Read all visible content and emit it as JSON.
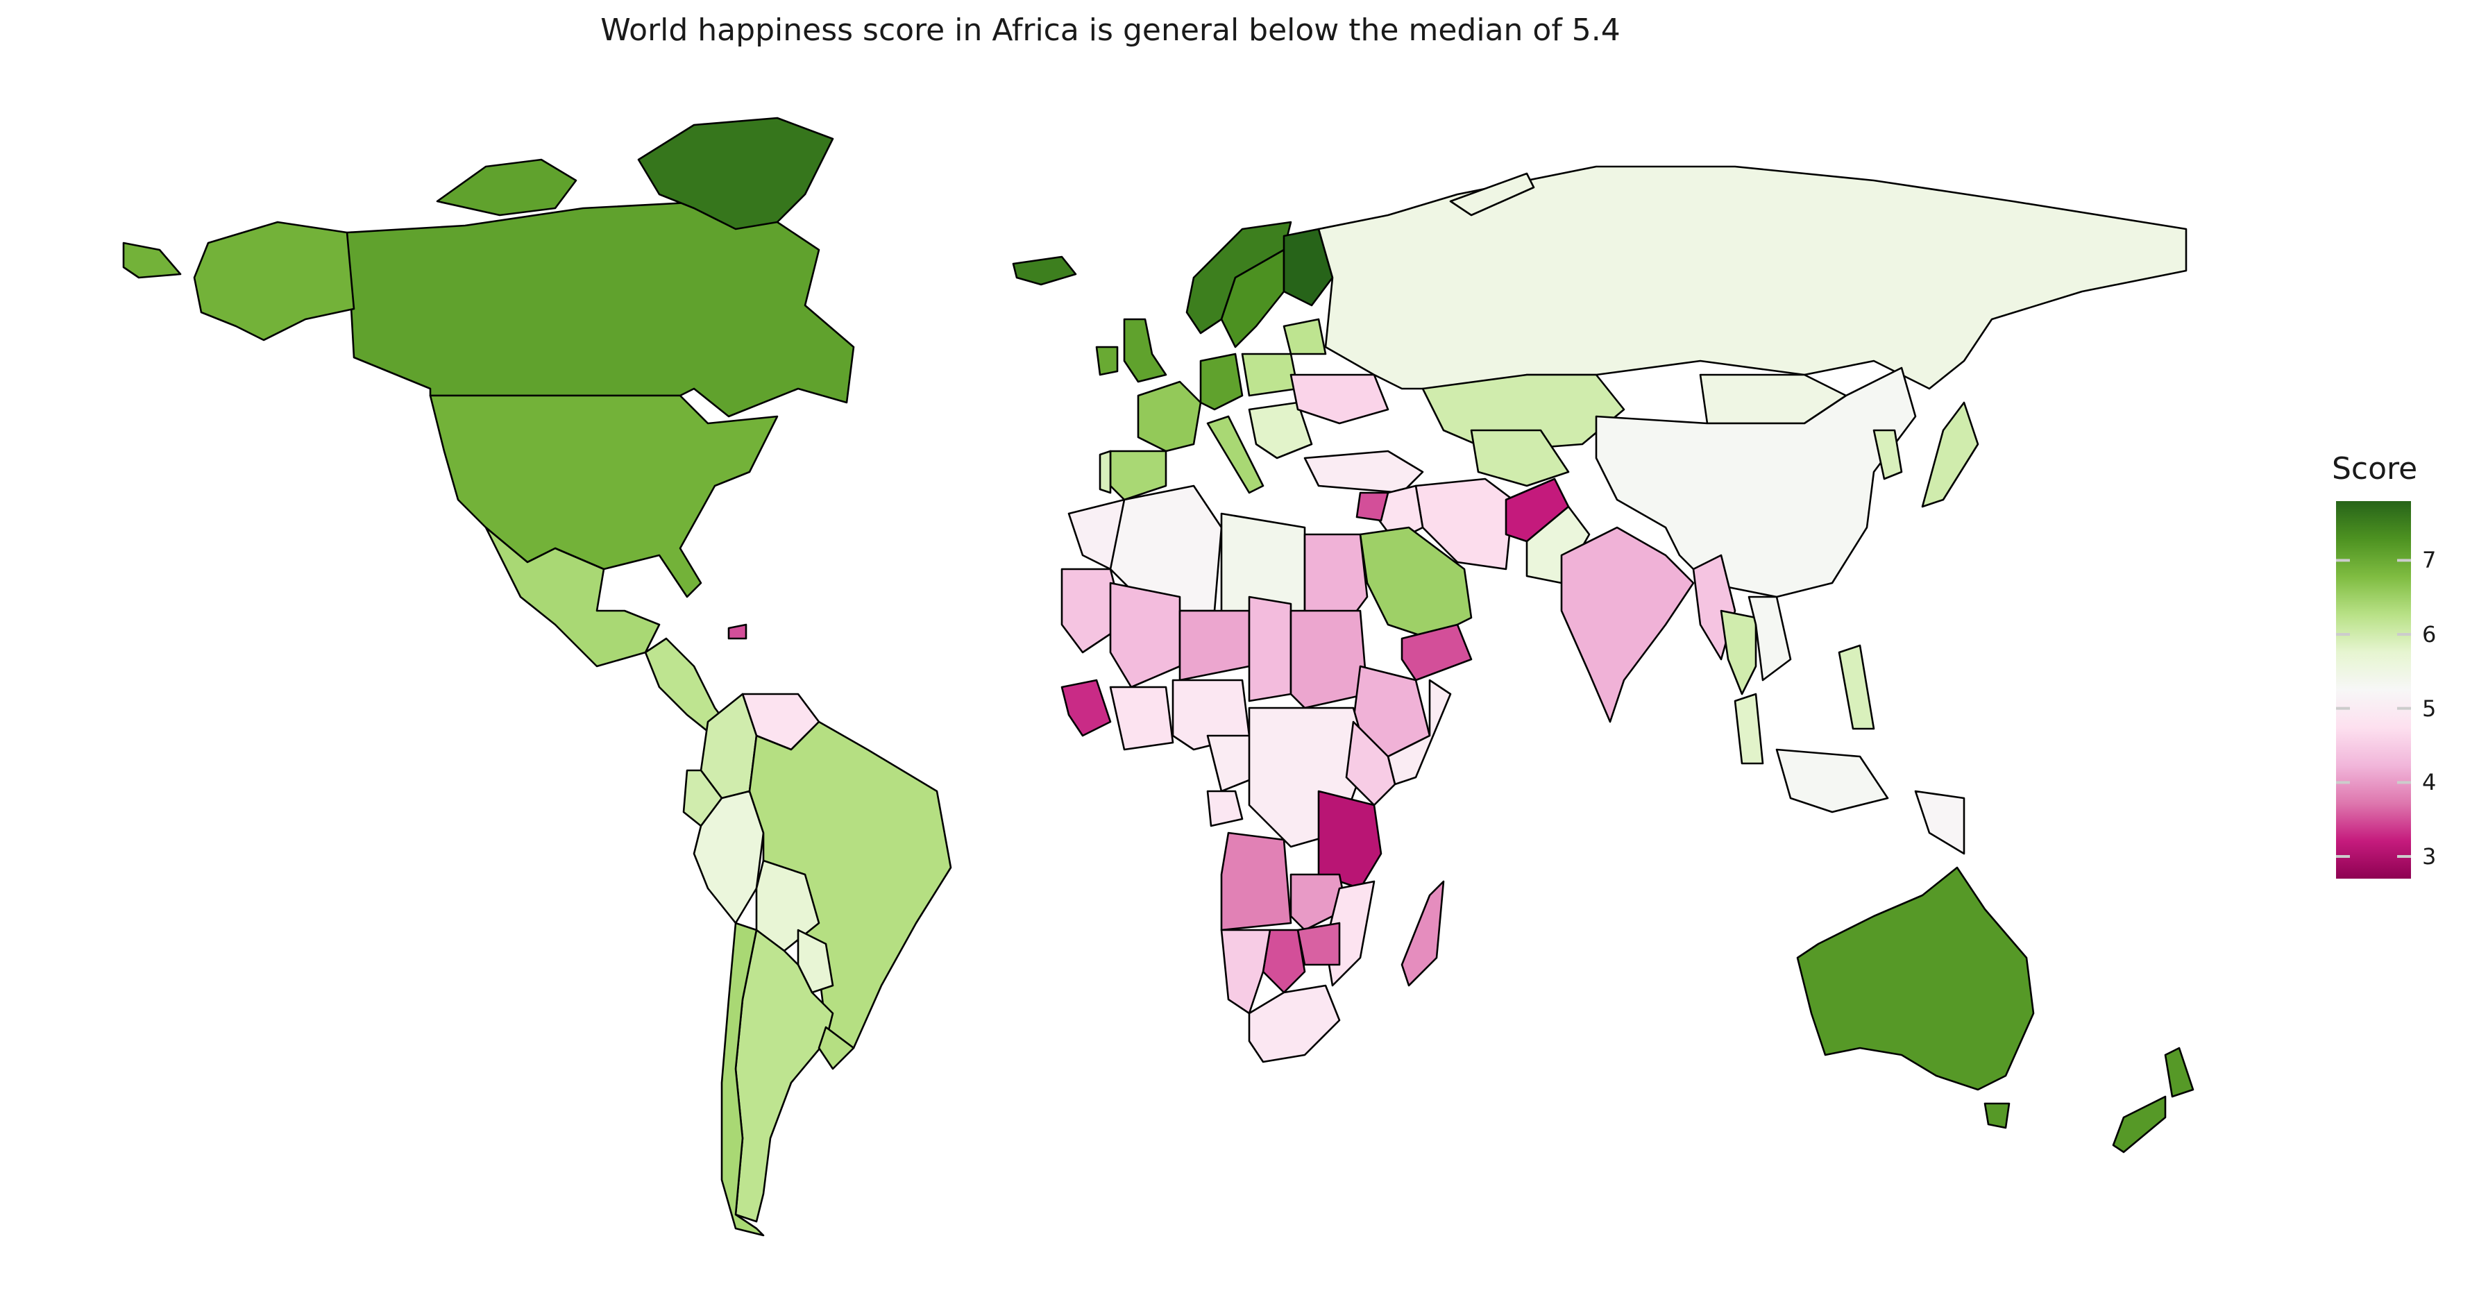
{
  "title": "World happiness score in Africa is general below the median of 5.4",
  "legend": {
    "title": "Score",
    "ticks": [
      "3",
      "4",
      "5",
      "6",
      "7"
    ],
    "tick_values": [
      3,
      4,
      5,
      6,
      7
    ],
    "min": 2.7,
    "max": 7.8,
    "stops": [
      "#8e0152",
      "#c51b7d",
      "#de77ae",
      "#f1b6da",
      "#fde0ef",
      "#f7f7f7",
      "#e6f5d0",
      "#b8e186",
      "#7fbc41",
      "#4d9221",
      "#276419"
    ]
  },
  "chart_data": {
    "type": "choropleth",
    "title": "World happiness score in Africa is general below the median of 5.4",
    "legend_title": "Score",
    "scale_range": [
      2.7,
      7.8
    ],
    "colormap": "PiYG",
    "median": 5.4,
    "regions": [
      {
        "name": "Canada",
        "value": 7.1
      },
      {
        "name": "Greenland",
        "value": 7.6
      },
      {
        "name": "United States",
        "value": 6.9
      },
      {
        "name": "Alaska",
        "value": 6.9
      },
      {
        "name": "Mexico",
        "value": 6.4
      },
      {
        "name": "Central America",
        "value": 6.2
      },
      {
        "name": "Cuba/Haiti",
        "value": 3.5
      },
      {
        "name": "Venezuela",
        "value": 4.8
      },
      {
        "name": "Colombia",
        "value": 6.0
      },
      {
        "name": "Ecuador",
        "value": 6.0
      },
      {
        "name": "Peru",
        "value": 5.6
      },
      {
        "name": "Brazil",
        "value": 6.3
      },
      {
        "name": "Bolivia",
        "value": 5.7
      },
      {
        "name": "Paraguay",
        "value": 5.7
      },
      {
        "name": "Argentina",
        "value": 6.2
      },
      {
        "name": "Chile",
        "value": 6.4
      },
      {
        "name": "Uruguay",
        "value": 6.3
      },
      {
        "name": "Iceland",
        "value": 7.5
      },
      {
        "name": "Norway",
        "value": 7.5
      },
      {
        "name": "Sweden",
        "value": 7.3
      },
      {
        "name": "Finland",
        "value": 7.8
      },
      {
        "name": "United Kingdom",
        "value": 7.1
      },
      {
        "name": "Ireland",
        "value": 7.0
      },
      {
        "name": "France",
        "value": 6.6
      },
      {
        "name": "Spain",
        "value": 6.4
      },
      {
        "name": "Portugal",
        "value": 5.9
      },
      {
        "name": "Germany",
        "value": 7.1
      },
      {
        "name": "Italy",
        "value": 6.4
      },
      {
        "name": "Poland",
        "value": 6.2
      },
      {
        "name": "Ukraine",
        "value": 4.6
      },
      {
        "name": "Balkans",
        "value": 5.8
      },
      {
        "name": "Turkey",
        "value": 5.0
      },
      {
        "name": "Russia",
        "value": 5.5
      },
      {
        "name": "Kazakhstan",
        "value": 6.0
      },
      {
        "name": "Mongolia",
        "value": 5.5
      },
      {
        "name": "China",
        "value": 5.3
      },
      {
        "name": "Japan",
        "value": 6.0
      },
      {
        "name": "Korea",
        "value": 5.9
      },
      {
        "name": "Iran",
        "value": 4.7
      },
      {
        "name": "Iraq",
        "value": 4.8
      },
      {
        "name": "Syria",
        "value": 3.5
      },
      {
        "name": "Saudi Arabia",
        "value": 6.5
      },
      {
        "name": "Yemen",
        "value": 3.5
      },
      {
        "name": "Afghanistan",
        "value": 3.2
      },
      {
        "name": "Pakistan",
        "value": 5.6
      },
      {
        "name": "India",
        "value": 4.2
      },
      {
        "name": "Myanmar",
        "value": 4.4
      },
      {
        "name": "Thailand",
        "value": 6.0
      },
      {
        "name": "Indonesia",
        "value": 5.3
      },
      {
        "name": "Papua New Guinea",
        "value": 5.2
      },
      {
        "name": "Philippines",
        "value": 5.9
      },
      {
        "name": "Malaysia",
        "value": 5.8
      },
      {
        "name": "Australia",
        "value": 7.2
      },
      {
        "name": "New Zealand",
        "value": 7.2
      },
      {
        "name": "Morocco",
        "value": 5.1
      },
      {
        "name": "Algeria",
        "value": 5.2
      },
      {
        "name": "Libya",
        "value": 5.4
      },
      {
        "name": "Egypt",
        "value": 4.2
      },
      {
        "name": "Mauritania",
        "value": 4.4
      },
      {
        "name": "Mali",
        "value": 4.3
      },
      {
        "name": "Niger",
        "value": 4.1
      },
      {
        "name": "Chad",
        "value": 4.3
      },
      {
        "name": "Sudan",
        "value": 4.1
      },
      {
        "name": "Ethiopia",
        "value": 4.2
      },
      {
        "name": "Somalia",
        "value": 5.0
      },
      {
        "name": "Nigeria",
        "value": 4.9
      },
      {
        "name": "Ghana",
        "value": 4.8
      },
      {
        "name": "Cameroon",
        "value": 5.0
      },
      {
        "name": "Gabon",
        "value": 4.9
      },
      {
        "name": "Kenya",
        "value": 4.5
      },
      {
        "name": "Tanzania",
        "value": 3.1
      },
      {
        "name": "Angola",
        "value": 3.8
      },
      {
        "name": "Zambia",
        "value": 4.0
      },
      {
        "name": "Zimbabwe",
        "value": 3.6
      },
      {
        "name": "Botswana",
        "value": 3.5
      },
      {
        "name": "Mozambique",
        "value": 4.8
      },
      {
        "name": "Namibia",
        "value": 4.5
      },
      {
        "name": "South Africa",
        "value": 4.9
      },
      {
        "name": "Madagascar",
        "value": 3.9
      },
      {
        "name": "Sierra Leone",
        "value": 3.3
      }
    ]
  }
}
